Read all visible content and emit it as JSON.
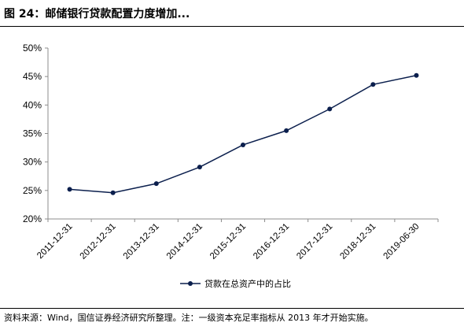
{
  "title": "图 24：邮储银行贷款配置力度增加...",
  "source_note": "资料来源：Wind，国信证券经济研究所整理。注：一级资本充足率指标从 2013 年才开始实施。",
  "chart_data": {
    "type": "line",
    "categories": [
      "2011-12-31",
      "2012-12-31",
      "2013-12-31",
      "2014-12-31",
      "2015-12-31",
      "2016-12-31",
      "2017-12-31",
      "2018-12-31",
      "2019-06-30"
    ],
    "series": [
      {
        "name": "贷款在总资产中的占比",
        "values": [
          25.2,
          24.6,
          26.2,
          29.1,
          33.0,
          35.5,
          39.3,
          43.6,
          45.2
        ],
        "color": "#0b1f4d"
      }
    ],
    "ylim": [
      20,
      50
    ],
    "yticks": [
      "20%",
      "25%",
      "30%",
      "35%",
      "40%",
      "45%",
      "50%"
    ],
    "grid": false,
    "legend_position": "bottom-center"
  }
}
